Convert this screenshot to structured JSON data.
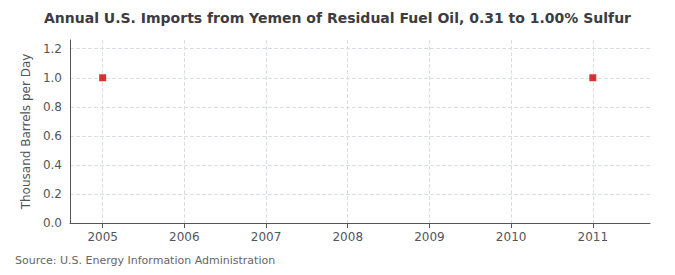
{
  "chart_data": {
    "type": "scatter",
    "title": "Annual U.S. Imports from Yemen of Residual Fuel Oil, 0.31 to 1.00% Sulfur",
    "ylabel": "Thousand Barrels per Day",
    "source": "Source: U.S. Energy Information Administration",
    "x": [
      2005,
      2011
    ],
    "values": [
      1.0,
      1.0
    ],
    "color": "#cc0000",
    "marker": "square",
    "xlim": [
      2004.6,
      2011.7
    ],
    "xticks": [
      2005,
      2006,
      2007,
      2008,
      2009,
      2010,
      2011
    ],
    "ylim": [
      0.0,
      1.26
    ],
    "yticks": [
      {
        "value": 0.0,
        "label": "0.0"
      },
      0.2,
      0.4,
      0.6,
      0.8,
      {
        "value": 1.0,
        "label": "1.0"
      },
      1.2
    ],
    "grid": true
  }
}
